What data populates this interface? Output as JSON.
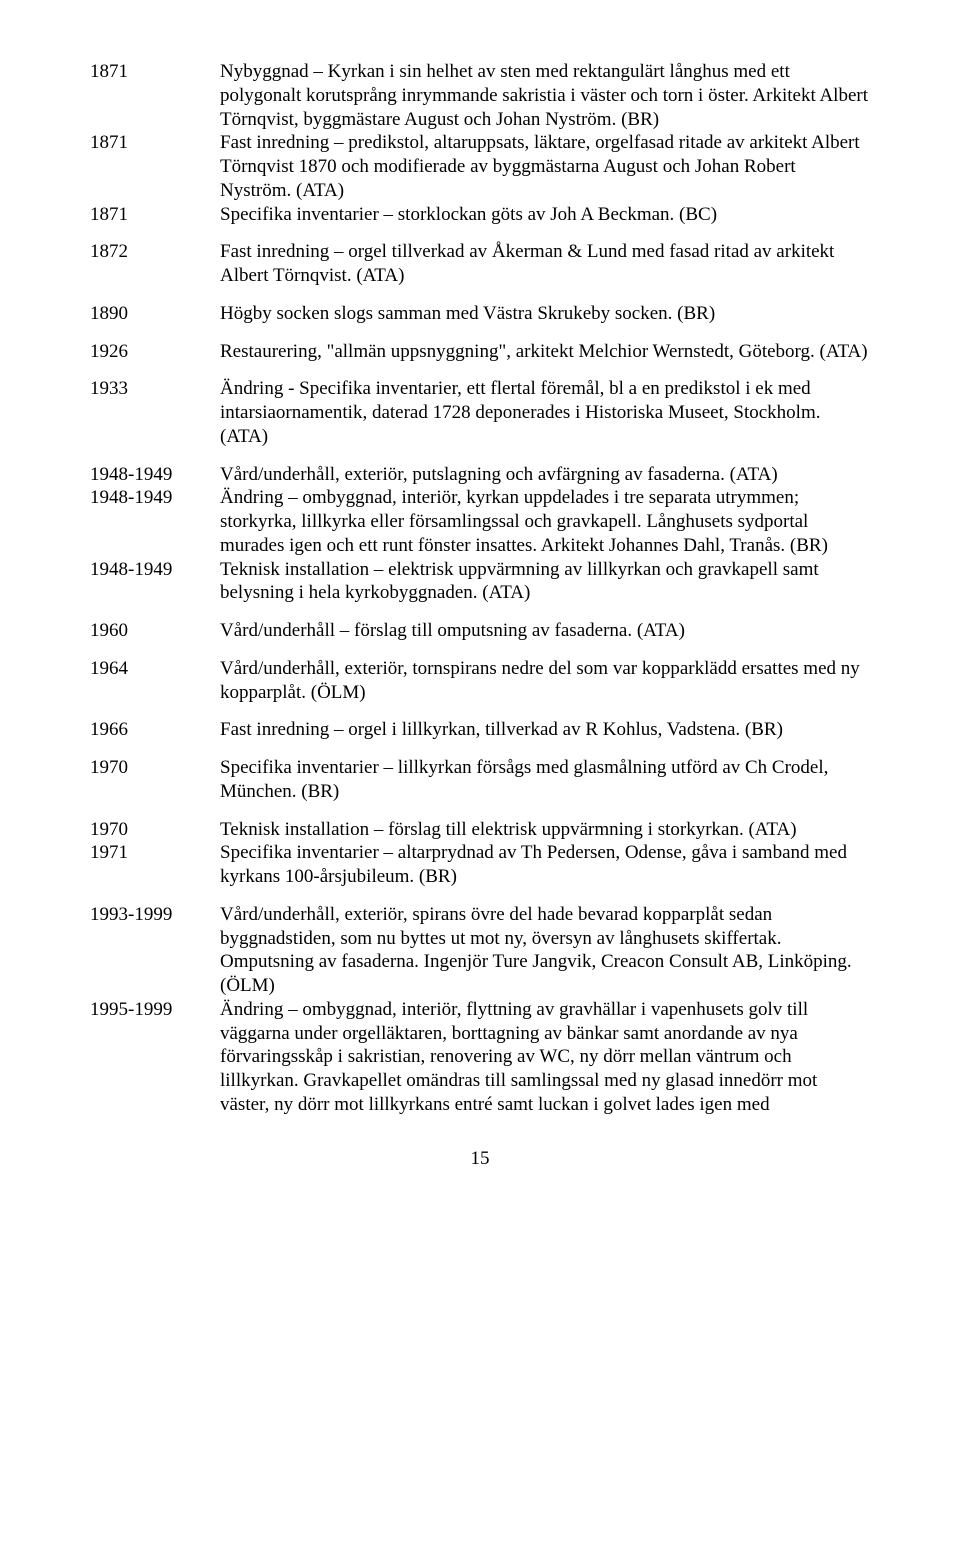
{
  "entries": [
    {
      "year": "1871",
      "text": "Nybyggnad – Kyrkan i sin helhet av sten med rektangulärt långhus med ett polygonalt korutsprång inrymmande sakristia i väster och torn i öster. Arkitekt Albert Törnqvist, byggmästare August och Johan Nyström. (BR)"
    },
    {
      "year": "1871",
      "text": "Fast inredning – predikstol, altaruppsats, läktare, orgelfasad ritade av arkitekt Albert Törnqvist 1870 och modifierade av byggmästarna August och Johan Robert Nyström. (ATA)"
    },
    {
      "year": "1871",
      "text": "Specifika inventarier – storklockan göts av Joh A Beckman. (BC)"
    },
    {
      "year": "1872",
      "text": "Fast inredning – orgel tillverkad av Åkerman & Lund med fasad ritad av arkitekt Albert Törnqvist. (ATA)"
    },
    {
      "year": "1890",
      "text": "Högby socken slogs samman med Västra Skrukeby socken. (BR)"
    },
    {
      "year": "1926",
      "text": "Restaurering, \"allmän uppsnyggning\", arkitekt Melchior Wernstedt, Göteborg. (ATA)"
    },
    {
      "year": "1933",
      "text": "Ändring - Specifika inventarier, ett flertal föremål, bl a en predikstol i ek med intarsiaornamentik, daterad 1728 deponerades i Historiska Museet, Stockholm. (ATA)"
    },
    {
      "year": "1948-1949",
      "text": "Vård/underhåll, exteriör, putslagning och avfärgning av fasaderna. (ATA)"
    },
    {
      "year": "1948-1949",
      "text": "Ändring – ombyggnad, interiör, kyrkan uppdelades i tre separata utrymmen; storkyrka, lillkyrka eller församlingssal och gravkapell. Långhusets sydportal murades igen och ett runt fönster insattes. Arkitekt Johannes Dahl, Tranås. (BR)"
    },
    {
      "year": "1948-1949",
      "text": "Teknisk installation – elektrisk uppvärmning av lillkyrkan och gravkapell samt belysning i hela kyrkobyggnaden. (ATA)"
    },
    {
      "year": "1960",
      "text": "Vård/underhåll – förslag till omputsning av fasaderna. (ATA)"
    },
    {
      "year": "1964",
      "text": "Vård/underhåll, exteriör, tornspirans nedre del som var kopparklädd ersattes med ny kopparplåt. (ÖLM)"
    },
    {
      "year": "1966",
      "text": "Fast inredning – orgel i lillkyrkan, tillverkad av R Kohlus, Vadstena. (BR)"
    },
    {
      "year": "1970",
      "text": "Specifika inventarier – lillkyrkan försågs med glasmålning utförd av Ch Crodel, München. (BR)"
    },
    {
      "year": "1970",
      "text": "Teknisk installation – förslag till elektrisk uppvärmning i storkyrkan. (ATA)"
    },
    {
      "year": "1971",
      "text": "Specifika inventarier – altarprydnad av Th Pedersen, Odense, gåva i samband med kyrkans 100-årsjubileum. (BR)"
    },
    {
      "year": "1993-1999",
      "text": "Vård/underhåll, exteriör, spirans övre del hade bevarad kopparplåt sedan byggnadstiden, som nu byttes ut mot ny, översyn av långhusets skiffertak. Omputsning av fasaderna. Ingenjör Ture Jangvik, Creacon Consult AB, Linköping.(ÖLM)"
    },
    {
      "year": "1995-1999",
      "text": "Ändring – ombyggnad, interiör, flyttning av gravhällar i vapenhusets golv till väggarna under orgelläktaren, borttagning av bänkar samt anordande av nya förvaringsskåp i sakristian, renovering av WC, ny dörr mellan väntrum och lillkyrkan. Gravkapellet omändras till samlingssal med ny glasad innedörr mot väster, ny dörr mot lillkyrkans entré samt luckan i golvet lades igen med"
    }
  ],
  "groups": [
    [
      0,
      1,
      2
    ],
    [
      3
    ],
    [
      4
    ],
    [
      5
    ],
    [
      6
    ],
    [
      7,
      8,
      9
    ],
    [
      10
    ],
    [
      11
    ],
    [
      12
    ],
    [
      13
    ],
    [
      14,
      15
    ],
    [
      16,
      17
    ]
  ],
  "page_number": "15"
}
